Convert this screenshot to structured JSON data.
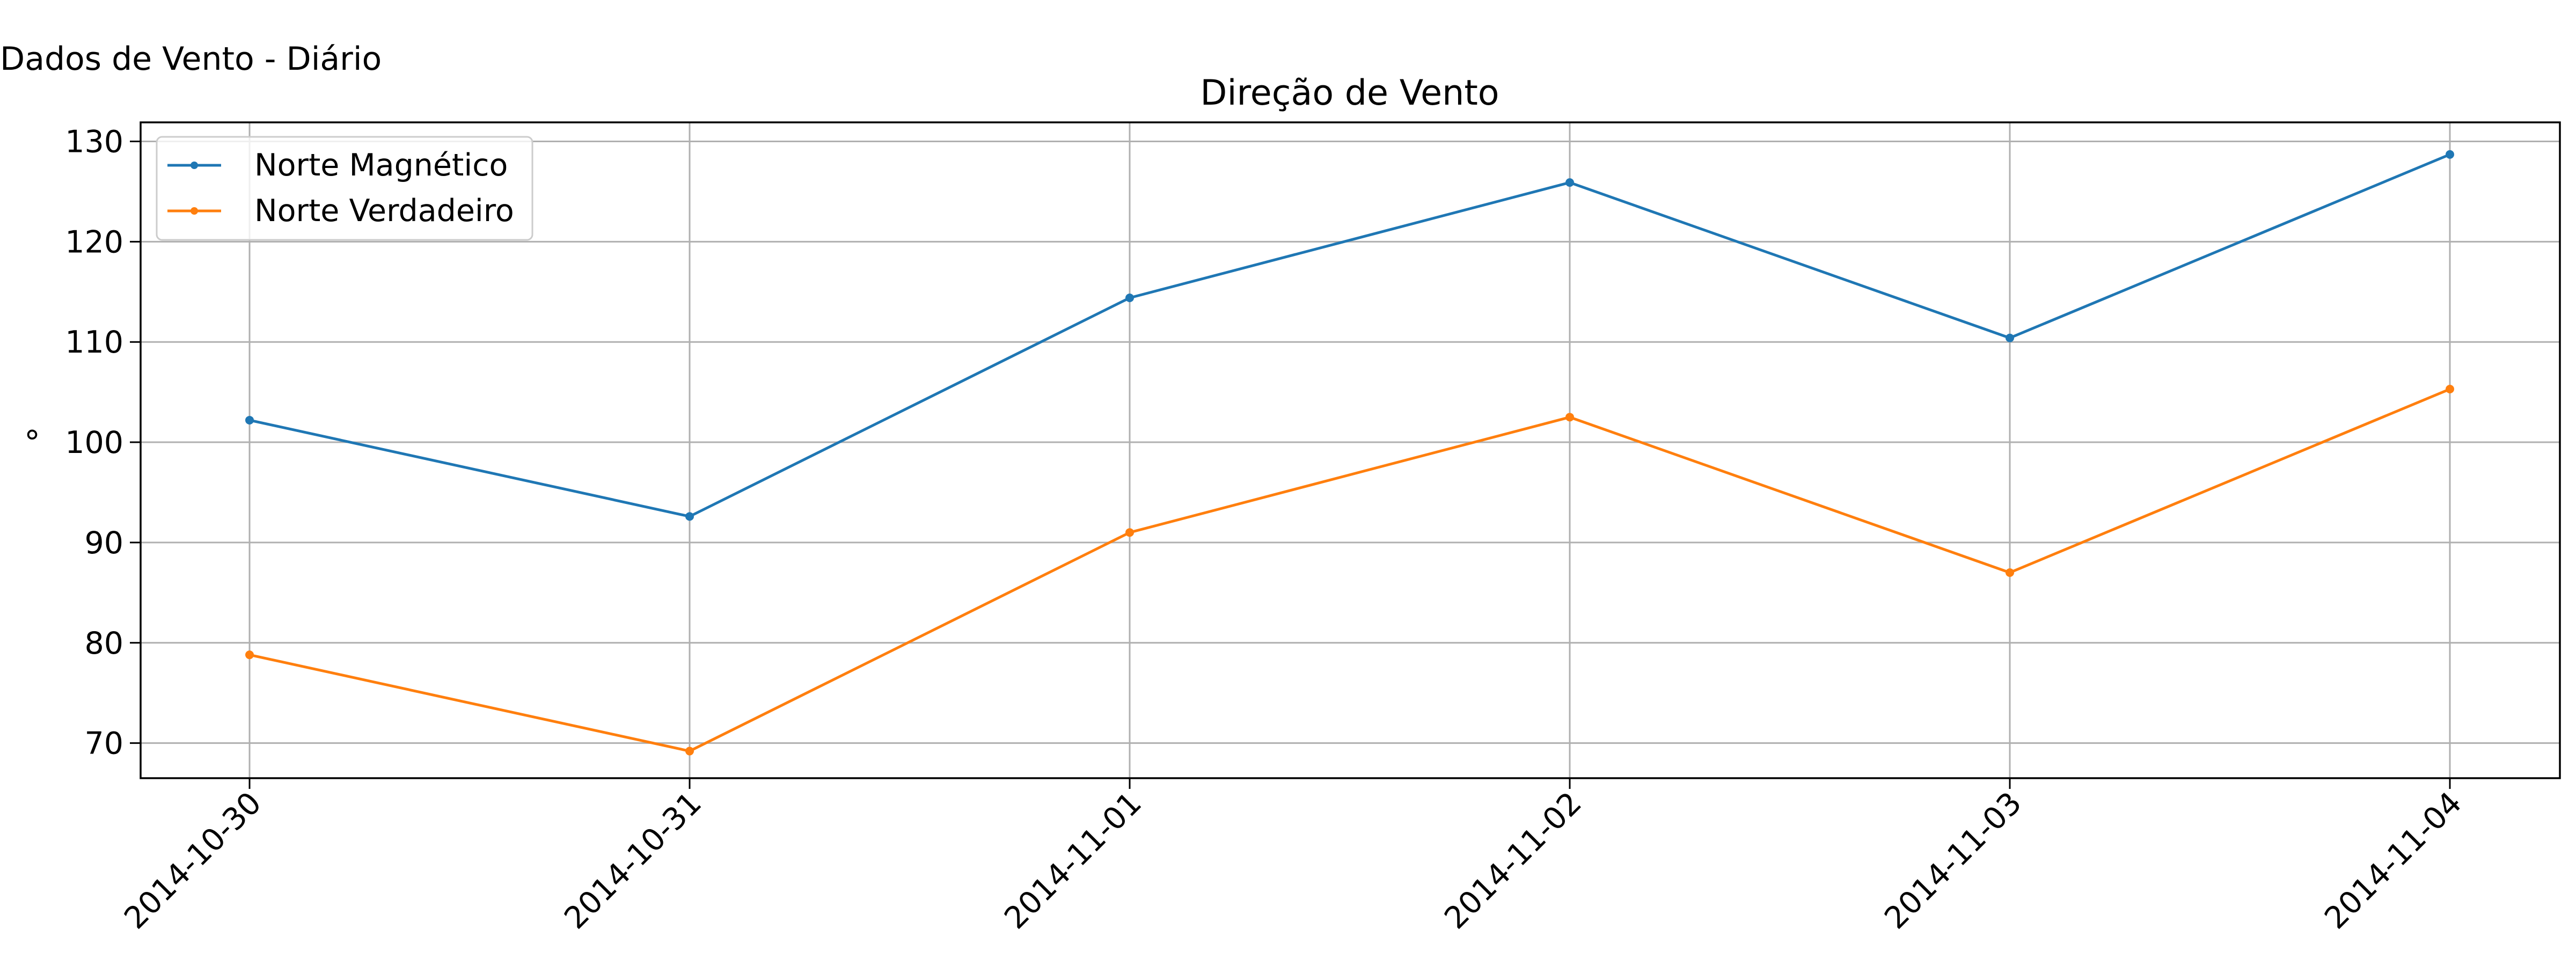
{
  "figure": {
    "suptitle": "Dados de Vento - Diário"
  },
  "chart_data": {
    "type": "line",
    "title": "Direção de Vento",
    "xlabel": "",
    "ylabel": "°",
    "categories": [
      "2014-10-30",
      "2014-10-31",
      "2014-11-01",
      "2014-11-02",
      "2014-11-03",
      "2014-11-04"
    ],
    "series": [
      {
        "name": "Norte Magnético",
        "color": "#1f77b4",
        "values": [
          102.2,
          92.6,
          114.4,
          125.9,
          110.4,
          128.7
        ]
      },
      {
        "name": "Norte Verdadeiro",
        "color": "#ff7f0e",
        "values": [
          78.8,
          69.2,
          91.0,
          102.5,
          87.0,
          105.3
        ]
      }
    ],
    "yticks": [
      70,
      80,
      90,
      100,
      110,
      120,
      130
    ],
    "ylim": [
      66.5,
      131.9
    ],
    "grid": true,
    "legend": "upper-left",
    "marker": "point"
  }
}
